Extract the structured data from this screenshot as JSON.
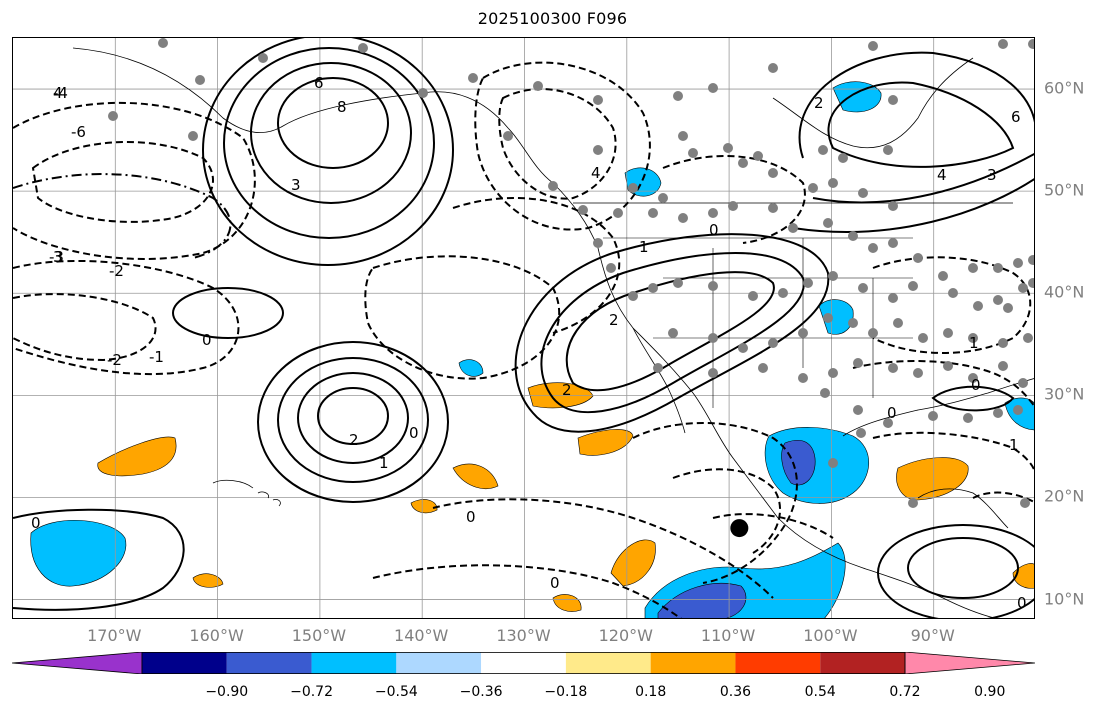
{
  "title": "2025100300 F096",
  "map": {
    "projection": "equirectangular",
    "lon_range": [
      -180,
      -80
    ],
    "lat_range": [
      8,
      65
    ],
    "gridlines": true,
    "longitude_labels": [
      "170°W",
      "160°W",
      "150°W",
      "140°W",
      "130°W",
      "120°W",
      "110°W",
      "100°W",
      "90°W"
    ],
    "latitude_labels": [
      "60°N",
      "50°N",
      "40°N",
      "30°N",
      "20°N",
      "10°N"
    ],
    "colors": {
      "contour": "#000000",
      "gridline": "#999999",
      "station_dot": "#808080",
      "highlight_dot": "#000000"
    },
    "highlight_point": {
      "lon": -109,
      "lat": 17
    },
    "contour_labels": [
      "8",
      "6",
      "4",
      "3",
      "2",
      "1",
      "0",
      "-1",
      "-2",
      "-3",
      "-4",
      "-6"
    ]
  },
  "colorbar": {
    "extend": "both",
    "colors": [
      "#9932cc",
      "#00008b",
      "#3a5bd0",
      "#00bfff",
      "#add8ff",
      "#ffffff",
      "#ffea8a",
      "#ffa500",
      "#ff3c00",
      "#b22222",
      "#ff88aa"
    ],
    "tick_labels": [
      "−0.90",
      "−0.72",
      "−0.54",
      "−0.36",
      "−0.18",
      "0.18",
      "0.36",
      "0.54",
      "0.72",
      "0.90"
    ]
  }
}
